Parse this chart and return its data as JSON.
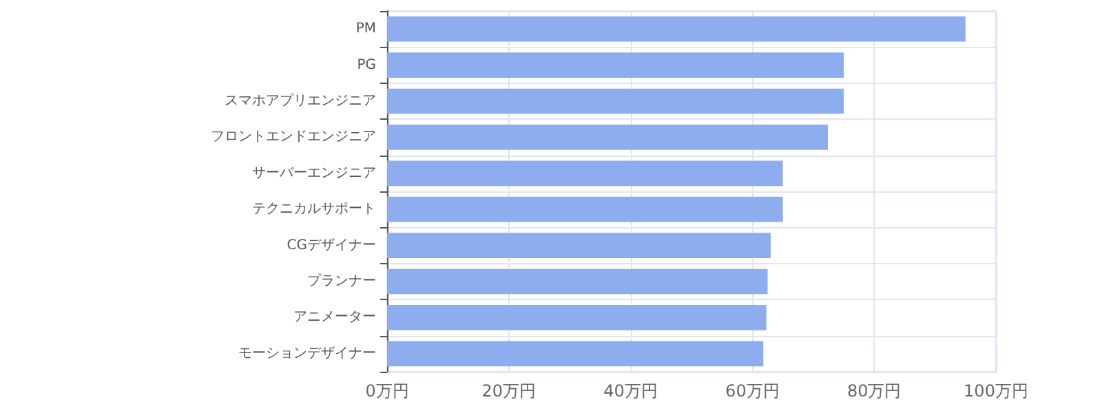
{
  "chart_data": {
    "type": "bar",
    "orientation": "horizontal",
    "categories": [
      "PM",
      "PG",
      "スマホアプリエンジニア",
      "フロントエンドエンジニア",
      "サーバーエンジニア",
      "テクニカルサポート",
      "CGデザイナー",
      "プランナー",
      "アニメーター",
      "モーションデザイナー"
    ],
    "values": [
      95,
      75,
      75,
      72.4,
      65,
      65,
      63,
      62.5,
      62.3,
      61.8
    ],
    "color": "#8eadee",
    "xlim": [
      0,
      100
    ],
    "xticks": [
      {
        "value": 0,
        "label": "0万円"
      },
      {
        "value": 20,
        "label": "20万円"
      },
      {
        "value": 40,
        "label": "40万円"
      },
      {
        "value": 60,
        "label": "60万円"
      },
      {
        "value": 80,
        "label": "80万円"
      },
      {
        "value": 100,
        "label": "100万円"
      }
    ],
    "grid": true
  }
}
